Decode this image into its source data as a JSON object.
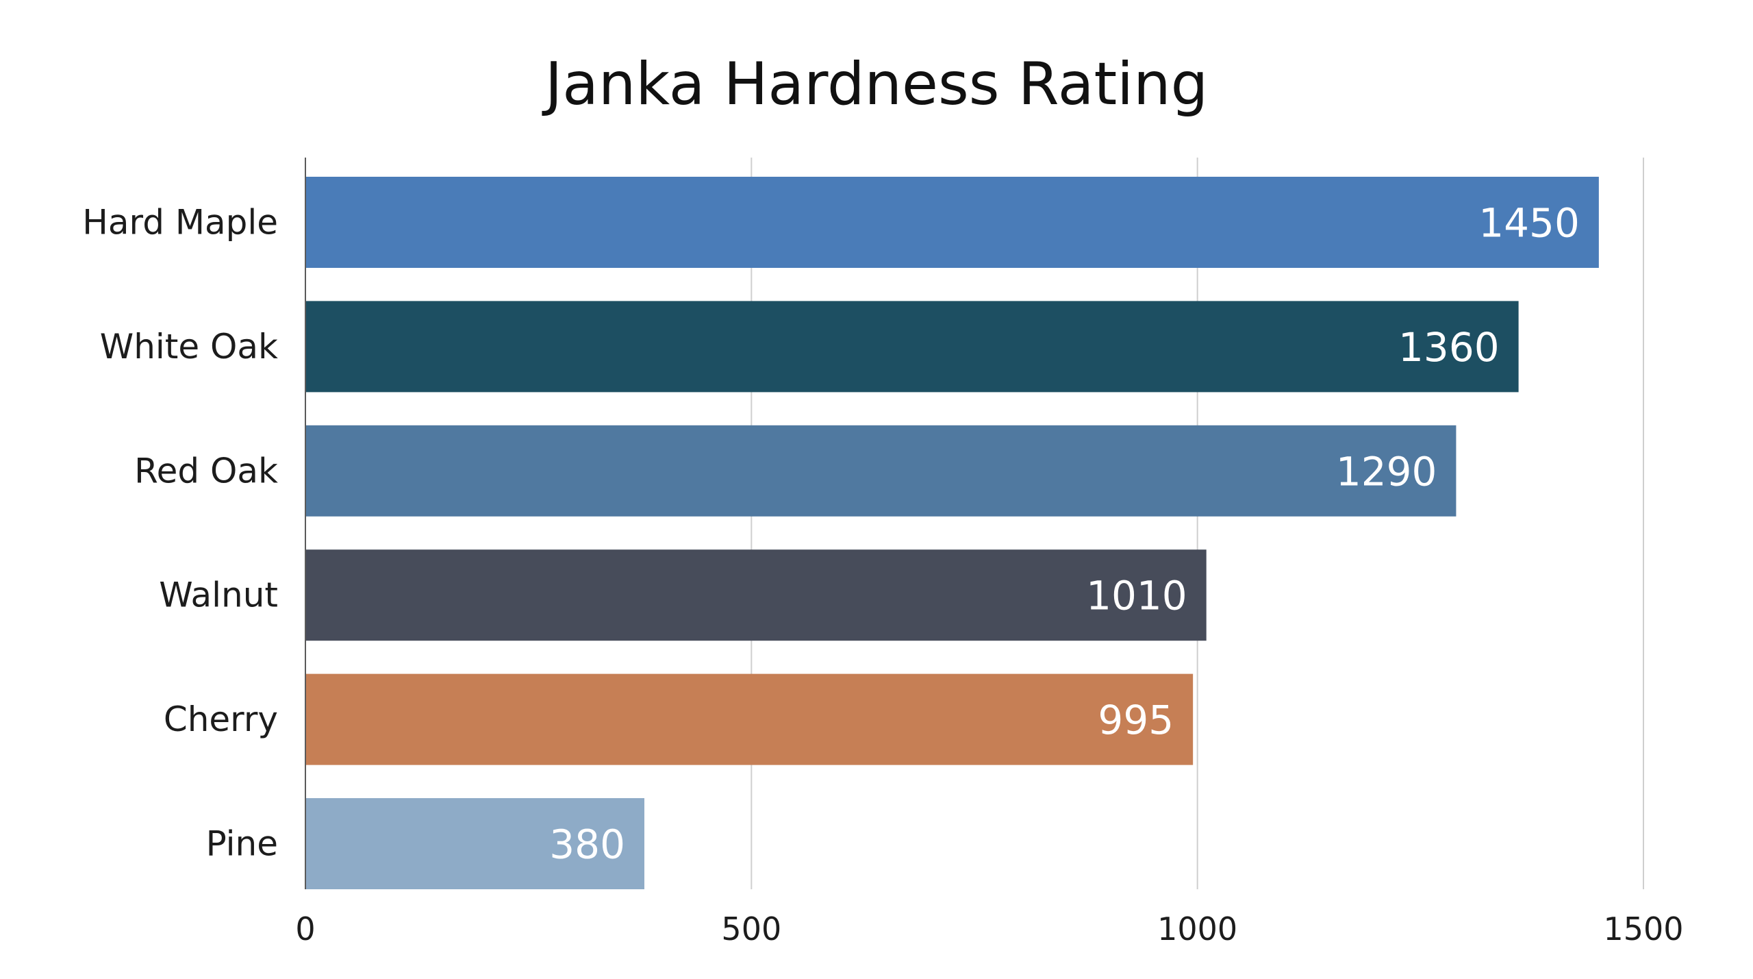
{
  "chart_data": {
    "type": "bar",
    "orientation": "horizontal",
    "title": "Janka Hardness Rating",
    "xlabel": "",
    "ylabel": "",
    "categories": [
      "Hard Maple",
      "White Oak",
      "Red Oak",
      "Walnut",
      "Cherry",
      "Pine"
    ],
    "values": [
      1450,
      1360,
      1290,
      1010,
      995,
      380
    ],
    "value_labels": [
      "1450",
      "1360",
      "1290",
      "1010",
      "995",
      "380"
    ],
    "bar_colors": [
      "#4a7cb8",
      "#1d4f62",
      "#5079a0",
      "#474c5a",
      "#c67f55",
      "#8eabc7"
    ],
    "xlim": [
      0,
      1500
    ],
    "x_ticks": [
      0,
      500,
      1000,
      1500
    ],
    "x_tick_labels": [
      "0",
      "500",
      "1000",
      "1500"
    ],
    "grid": true,
    "legend": "none"
  }
}
